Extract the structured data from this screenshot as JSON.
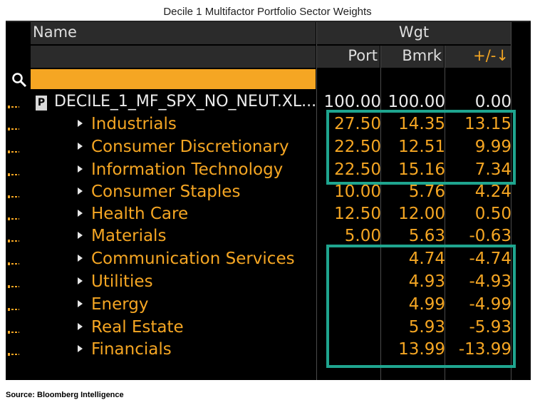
{
  "caption": "Decile 1 Multifactor Portfolio Sector Weights",
  "source": "Source: Bloomberg Intelligence",
  "header": {
    "name": "Name",
    "wgt": "Wgt",
    "port": "Port",
    "bmrk": "Bmrk",
    "diff": "+/-↓"
  },
  "root": {
    "doc_icon": "P",
    "name": "DECILE_1_MF_SPX_NO_NEUT.XL...",
    "port": "100.00",
    "bmrk": "100.00",
    "diff": "0.00"
  },
  "rows": [
    {
      "name": "Industrials",
      "port": "27.50",
      "bmrk": "14.35",
      "diff": "13.15"
    },
    {
      "name": "Consumer Discretionary",
      "port": "22.50",
      "bmrk": "12.51",
      "diff": "9.99"
    },
    {
      "name": "Information Technology",
      "port": "22.50",
      "bmrk": "15.16",
      "diff": "7.34"
    },
    {
      "name": "Consumer Staples",
      "port": "10.00",
      "bmrk": "5.76",
      "diff": "4.24"
    },
    {
      "name": "Health Care",
      "port": "12.50",
      "bmrk": "12.00",
      "diff": "0.50"
    },
    {
      "name": "Materials",
      "port": "5.00",
      "bmrk": "5.63",
      "diff": "-0.63"
    },
    {
      "name": "Communication Services",
      "port": "",
      "bmrk": "4.74",
      "diff": "-4.74"
    },
    {
      "name": "Utilities",
      "port": "",
      "bmrk": "4.93",
      "diff": "-4.93"
    },
    {
      "name": "Energy",
      "port": "",
      "bmrk": "4.99",
      "diff": "-4.99"
    },
    {
      "name": "Real Estate",
      "port": "",
      "bmrk": "5.93",
      "diff": "-5.93"
    },
    {
      "name": "Financials",
      "port": "",
      "bmrk": "13.99",
      "diff": "-13.99"
    }
  ],
  "colors": {
    "panel": "#000000",
    "accent": "#f5a623",
    "highlight": "#1fa58f",
    "header_bg": "#2b2b2b"
  }
}
